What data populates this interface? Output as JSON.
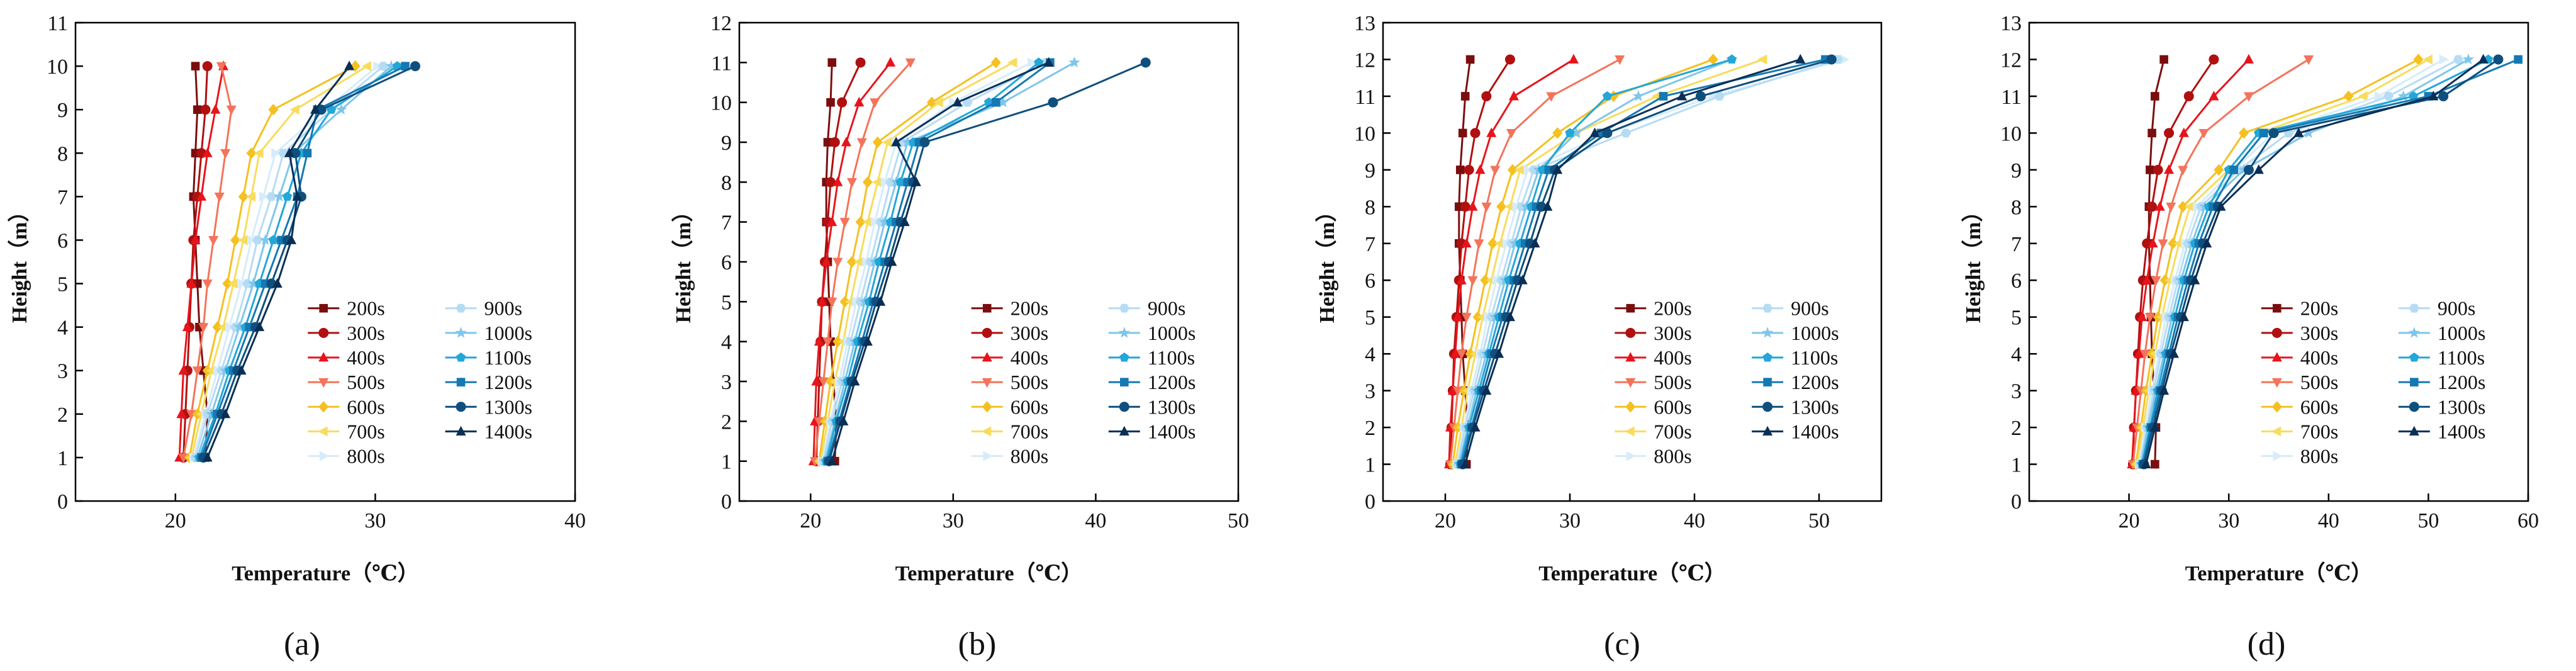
{
  "figure": {
    "series_names": [
      "200s",
      "300s",
      "400s",
      "500s",
      "600s",
      "700s",
      "800s",
      "900s",
      "1000s",
      "1100s",
      "1200s",
      "1300s",
      "1400s"
    ],
    "series_colors": [
      "#7a0e0e",
      "#b01010",
      "#e8141b",
      "#f4735a",
      "#f5c020",
      "#f7dc5e",
      "#d6ecfa",
      "#b6dcf4",
      "#7fc6ea",
      "#23a6d8",
      "#1479b2",
      "#0f4f7e",
      "#0a2f56"
    ],
    "series_markers": [
      "square",
      "circle",
      "triangle",
      "triangle-down",
      "diamond",
      "triangle-left",
      "triangle-right",
      "hexagon",
      "star",
      "pentagon",
      "square",
      "circle",
      "triangle"
    ]
  },
  "chart_data": [
    {
      "type": "line",
      "label": "(a)",
      "xlabel": "Temperature（℃）",
      "ylabel": "Height（m）",
      "xlim": [
        15,
        40
      ],
      "ylim": [
        0,
        11
      ],
      "xticks": [
        20,
        30,
        40
      ],
      "yticks": [
        0,
        1,
        2,
        3,
        4,
        5,
        6,
        7,
        8,
        9,
        10,
        11
      ],
      "y": [
        1,
        2,
        3,
        4,
        5,
        6,
        7,
        8,
        9,
        10
      ],
      "series": [
        {
          "name": "200s",
          "values": [
            21.5,
            21.6,
            21.4,
            21.2,
            21.1,
            21.0,
            20.9,
            21.0,
            21.1,
            21.0
          ]
        },
        {
          "name": "300s",
          "values": [
            20.4,
            20.5,
            20.6,
            20.7,
            20.8,
            20.9,
            21.1,
            21.3,
            21.5,
            21.6
          ]
        },
        {
          "name": "400s",
          "values": [
            20.2,
            20.3,
            20.4,
            20.6,
            20.8,
            21.0,
            21.3,
            21.6,
            22.0,
            22.4
          ]
        },
        {
          "name": "500s",
          "values": [
            20.4,
            20.8,
            21.1,
            21.4,
            21.6,
            21.9,
            22.2,
            22.5,
            22.8,
            22.3
          ]
        },
        {
          "name": "600s",
          "values": [
            20.7,
            21.1,
            21.6,
            22.1,
            22.6,
            23.0,
            23.4,
            23.8,
            24.9,
            29.0
          ]
        },
        {
          "name": "700s",
          "values": [
            20.8,
            21.3,
            21.8,
            22.4,
            22.9,
            23.4,
            23.8,
            24.2,
            26.0,
            29.6
          ]
        },
        {
          "name": "800s",
          "values": [
            20.9,
            21.5,
            22.1,
            22.7,
            23.3,
            23.8,
            24.4,
            25.0,
            27.5,
            30.1
          ]
        },
        {
          "name": "900s",
          "values": [
            21.0,
            21.6,
            22.3,
            23.0,
            23.6,
            24.1,
            24.8,
            25.4,
            27.8,
            30.4
          ]
        },
        {
          "name": "1000s",
          "values": [
            21.1,
            21.8,
            22.5,
            23.2,
            23.9,
            24.5,
            25.2,
            25.9,
            28.3,
            30.8
          ]
        },
        {
          "name": "1100s",
          "values": [
            21.2,
            22.0,
            22.7,
            23.5,
            24.2,
            24.9,
            25.6,
            26.3,
            27.8,
            31.1
          ]
        },
        {
          "name": "1200s",
          "values": [
            21.3,
            22.1,
            22.9,
            23.7,
            24.5,
            25.3,
            26.1,
            26.6,
            27.1,
            31.5
          ]
        },
        {
          "name": "1300s",
          "values": [
            21.4,
            22.3,
            23.1,
            24.0,
            24.8,
            25.6,
            26.3,
            26.0,
            27.3,
            32.0
          ]
        },
        {
          "name": "1400s",
          "values": [
            21.6,
            22.5,
            23.3,
            24.2,
            25.1,
            25.8,
            26.1,
            25.7,
            27.0,
            28.7
          ]
        }
      ]
    },
    {
      "type": "line",
      "label": "(b)",
      "xlabel": "Temperature（℃）",
      "ylabel": "Height（m）",
      "xlim": [
        15,
        50
      ],
      "ylim": [
        0,
        12
      ],
      "xticks": [
        20,
        30,
        40,
        50
      ],
      "yticks": [
        0,
        1,
        2,
        3,
        4,
        5,
        6,
        7,
        8,
        9,
        10,
        11,
        12
      ],
      "y": [
        1,
        2,
        3,
        4,
        5,
        6,
        7,
        8,
        9,
        10,
        11
      ],
      "series": [
        {
          "name": "200s",
          "values": [
            21.7,
            21.8,
            21.6,
            21.4,
            21.3,
            21.2,
            21.1,
            21.1,
            21.2,
            21.4,
            21.5
          ]
        },
        {
          "name": "300s",
          "values": [
            20.4,
            20.5,
            20.6,
            20.7,
            20.8,
            21.0,
            21.2,
            21.4,
            21.7,
            22.2,
            23.5
          ]
        },
        {
          "name": "400s",
          "values": [
            20.2,
            20.3,
            20.4,
            20.6,
            20.8,
            21.1,
            21.5,
            21.9,
            22.5,
            23.4,
            25.6
          ]
        },
        {
          "name": "500s",
          "values": [
            20.3,
            20.6,
            20.9,
            21.2,
            21.5,
            21.9,
            22.4,
            22.9,
            23.6,
            24.5,
            27.0
          ]
        },
        {
          "name": "600s",
          "values": [
            20.6,
            21.0,
            21.4,
            21.9,
            22.4,
            22.9,
            23.5,
            24.0,
            24.7,
            28.5,
            33.0
          ]
        },
        {
          "name": "700s",
          "values": [
            20.7,
            21.2,
            21.7,
            22.3,
            22.8,
            23.4,
            24.0,
            24.7,
            25.4,
            29.0,
            34.2
          ]
        },
        {
          "name": "800s",
          "values": [
            20.8,
            21.4,
            22.0,
            22.6,
            23.2,
            23.9,
            24.5,
            25.2,
            26.0,
            30.0,
            35.5
          ]
        },
        {
          "name": "900s",
          "values": [
            20.9,
            21.5,
            22.2,
            22.8,
            23.5,
            24.2,
            24.9,
            25.6,
            26.4,
            31.0,
            36.5
          ]
        },
        {
          "name": "1000s",
          "values": [
            21.0,
            21.7,
            22.4,
            23.1,
            23.8,
            24.5,
            25.2,
            26.0,
            26.8,
            33.5,
            38.5
          ]
        },
        {
          "name": "1100s",
          "values": [
            21.1,
            21.8,
            22.6,
            23.3,
            24.1,
            24.8,
            25.6,
            26.3,
            27.2,
            32.5,
            36.0
          ]
        },
        {
          "name": "1200s",
          "values": [
            21.2,
            22.0,
            22.8,
            23.6,
            24.4,
            25.2,
            26.0,
            26.8,
            27.6,
            33.0,
            36.8
          ]
        },
        {
          "name": "1300s",
          "values": [
            21.3,
            22.1,
            22.9,
            23.8,
            24.6,
            25.5,
            26.3,
            27.2,
            28.0,
            37.0,
            43.5
          ]
        },
        {
          "name": "1400s",
          "values": [
            21.5,
            22.3,
            23.1,
            24.0,
            24.9,
            25.7,
            26.6,
            27.4,
            26.0,
            30.3,
            36.7
          ]
        }
      ]
    },
    {
      "type": "line",
      "label": "(c)",
      "xlabel": "Temperature（℃）",
      "ylabel": "Height（m）",
      "xlim": [
        15,
        55
      ],
      "ylim": [
        0,
        13
      ],
      "xticks": [
        20,
        30,
        40,
        50
      ],
      "yticks": [
        0,
        1,
        2,
        3,
        4,
        5,
        6,
        7,
        8,
        9,
        10,
        11,
        12,
        13
      ],
      "y": [
        1,
        2,
        3,
        4,
        5,
        6,
        7,
        8,
        9,
        10,
        11,
        12
      ],
      "series": [
        {
          "name": "200s",
          "values": [
            21.7,
            21.8,
            21.6,
            21.4,
            21.3,
            21.2,
            21.1,
            21.1,
            21.2,
            21.4,
            21.6,
            22.0
          ]
        },
        {
          "name": "300s",
          "values": [
            20.4,
            20.5,
            20.6,
            20.7,
            20.9,
            21.1,
            21.3,
            21.6,
            21.9,
            22.4,
            23.3,
            25.2
          ]
        },
        {
          "name": "400s",
          "values": [
            20.3,
            20.4,
            20.6,
            20.8,
            21.0,
            21.3,
            21.7,
            22.2,
            22.8,
            23.7,
            25.5,
            30.3
          ]
        },
        {
          "name": "500s",
          "values": [
            20.4,
            20.7,
            21.0,
            21.3,
            21.7,
            22.2,
            22.7,
            23.3,
            24.0,
            25.3,
            28.5,
            34.0
          ]
        },
        {
          "name": "600s",
          "values": [
            20.6,
            21.0,
            21.5,
            22.0,
            22.6,
            23.2,
            23.8,
            24.5,
            25.4,
            29.0,
            33.5,
            41.5
          ]
        },
        {
          "name": "700s",
          "values": [
            20.8,
            21.3,
            21.8,
            22.4,
            23.0,
            23.7,
            24.4,
            25.2,
            26.0,
            30.5,
            37.0,
            45.5
          ]
        },
        {
          "name": "800s",
          "values": [
            20.9,
            21.5,
            22.1,
            22.8,
            23.4,
            24.1,
            24.9,
            25.7,
            26.6,
            33.0,
            41.5,
            52.0
          ]
        },
        {
          "name": "900s",
          "values": [
            21.0,
            21.6,
            22.3,
            23.0,
            23.7,
            24.5,
            25.3,
            26.1,
            27.1,
            34.5,
            42.0,
            51.5
          ]
        },
        {
          "name": "1000s",
          "values": [
            21.1,
            21.8,
            22.5,
            23.3,
            24.0,
            24.8,
            25.6,
            26.5,
            27.5,
            30.5,
            35.5,
            43.0
          ]
        },
        {
          "name": "1100s",
          "values": [
            21.2,
            21.9,
            22.7,
            23.5,
            24.3,
            25.1,
            26.0,
            26.9,
            27.8,
            30.0,
            33.0,
            43.0
          ]
        },
        {
          "name": "1200s",
          "values": [
            21.3,
            22.1,
            22.9,
            23.7,
            24.6,
            25.5,
            26.4,
            27.3,
            28.3,
            32.5,
            37.5,
            50.5
          ]
        },
        {
          "name": "1300s",
          "values": [
            21.4,
            22.2,
            23.1,
            24.0,
            24.9,
            25.8,
            26.8,
            27.7,
            28.8,
            33.0,
            40.5,
            51.0
          ]
        },
        {
          "name": "1400s",
          "values": [
            21.6,
            22.4,
            23.3,
            24.3,
            25.2,
            26.2,
            27.2,
            28.2,
            29.0,
            32.0,
            39.0,
            48.5
          ]
        }
      ]
    },
    {
      "type": "line",
      "label": "(d)",
      "xlabel": "Temperature（℃）",
      "ylabel": "Height（m）",
      "xlim": [
        10,
        60
      ],
      "ylim": [
        0,
        13
      ],
      "xticks": [
        20,
        30,
        40,
        50,
        60
      ],
      "yticks": [
        0,
        1,
        2,
        3,
        4,
        5,
        6,
        7,
        8,
        9,
        10,
        11,
        12,
        13
      ],
      "y": [
        1,
        2,
        3,
        4,
        5,
        6,
        7,
        8,
        9,
        10,
        11,
        12
      ],
      "series": [
        {
          "name": "200s",
          "values": [
            22.6,
            22.7,
            22.5,
            22.3,
            22.2,
            22.1,
            22.0,
            22.0,
            22.1,
            22.3,
            22.6,
            23.5
          ]
        },
        {
          "name": "300s",
          "values": [
            20.4,
            20.5,
            20.7,
            20.9,
            21.1,
            21.4,
            21.8,
            22.3,
            22.9,
            24.0,
            26.0,
            28.5
          ]
        },
        {
          "name": "400s",
          "values": [
            20.3,
            20.5,
            20.7,
            21.0,
            21.3,
            21.8,
            22.4,
            23.1,
            24.0,
            25.5,
            28.5,
            32.0
          ]
        },
        {
          "name": "500s",
          "values": [
            20.4,
            20.8,
            21.2,
            21.6,
            22.1,
            22.7,
            23.4,
            24.2,
            25.4,
            27.5,
            32.0,
            38.0
          ]
        },
        {
          "name": "600s",
          "values": [
            20.7,
            21.2,
            21.7,
            22.3,
            22.9,
            23.6,
            24.4,
            25.4,
            29.0,
            31.5,
            42.0,
            49.0
          ]
        },
        {
          "name": "700s",
          "values": [
            20.8,
            21.4,
            22.0,
            22.6,
            23.3,
            24.1,
            25.0,
            26.1,
            30.0,
            33.0,
            43.5,
            50.0
          ]
        },
        {
          "name": "800s",
          "values": [
            21.0,
            21.6,
            22.3,
            23.0,
            23.7,
            24.6,
            25.6,
            26.8,
            30.5,
            34.5,
            45.0,
            51.5
          ]
        },
        {
          "name": "900s",
          "values": [
            21.1,
            21.8,
            22.5,
            23.2,
            24.0,
            24.9,
            25.9,
            27.2,
            31.0,
            36.0,
            46.0,
            53.0
          ]
        },
        {
          "name": "1000s",
          "values": [
            21.2,
            21.9,
            22.7,
            23.5,
            24.3,
            25.2,
            26.3,
            27.6,
            31.5,
            38.0,
            47.5,
            54.0
          ]
        },
        {
          "name": "1100s",
          "values": [
            21.3,
            22.1,
            22.9,
            23.7,
            24.6,
            25.5,
            26.6,
            28.0,
            30.0,
            33.0,
            48.5,
            56.0
          ]
        },
        {
          "name": "1200s",
          "values": [
            21.4,
            22.2,
            23.1,
            24.0,
            24.9,
            25.9,
            27.0,
            28.4,
            30.5,
            33.5,
            50.0,
            59.0
          ]
        },
        {
          "name": "1300s",
          "values": [
            21.5,
            22.4,
            23.3,
            24.2,
            25.2,
            26.2,
            27.4,
            28.9,
            32.0,
            34.5,
            51.5,
            57.0
          ]
        },
        {
          "name": "1400s",
          "values": [
            21.7,
            22.6,
            23.5,
            24.5,
            25.5,
            26.6,
            27.8,
            29.2,
            33.0,
            37.0,
            50.5,
            55.5
          ]
        }
      ]
    }
  ]
}
